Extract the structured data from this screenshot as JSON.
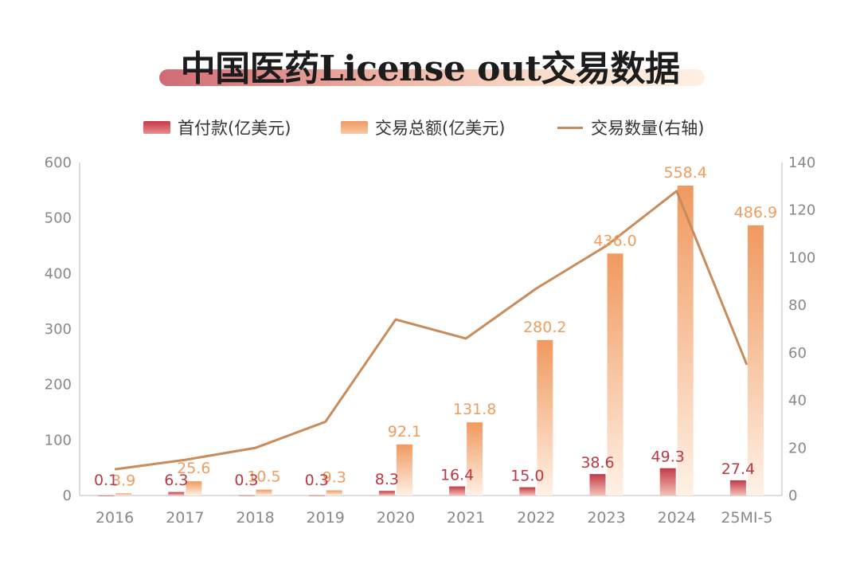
{
  "title": "中国医药License out交易数据",
  "legend": [
    {
      "label": "首付款(亿美元)",
      "kind": "bar",
      "color": "#c23a48"
    },
    {
      "label": "交易总额(亿美元)",
      "kind": "bar",
      "color": "#f2a16f"
    },
    {
      "label": "交易数量(右轴)",
      "kind": "line",
      "color": "#c88b5c"
    }
  ],
  "colors": {
    "upfront_top": "#c23a48",
    "upfront_bottom": "#f4c2b6",
    "total_top": "#f0995f",
    "total_bottom": "#fff1e6",
    "line": "#c88b5c",
    "upfront_label": "#b93a46",
    "total_label": "#ee9d5e",
    "axis": "#bbbbbb",
    "tick": "#888888"
  },
  "chart_data": {
    "type": "bar",
    "categories": [
      "2016",
      "2017",
      "2018",
      "2019",
      "2020",
      "2021",
      "2022",
      "2023",
      "2024",
      "25MI-5"
    ],
    "series": [
      {
        "name": "首付款(亿美元)",
        "type": "bar",
        "axis": "left",
        "values": [
          0.1,
          6.3,
          0.3,
          0.3,
          8.3,
          16.4,
          15.0,
          38.6,
          49.3,
          27.4
        ],
        "labels": [
          "0.1",
          "6.3",
          "0.3",
          "0.3",
          "8.3",
          "16.4",
          "15.0",
          "38.6",
          "49.3",
          "27.4"
        ]
      },
      {
        "name": "交易总额(亿美元)",
        "type": "bar",
        "axis": "left",
        "values": [
          3.9,
          25.6,
          10.5,
          9.3,
          92.1,
          131.8,
          280.2,
          436.0,
          558.4,
          486.9
        ],
        "labels": [
          "3.9",
          "25.6",
          "10.5",
          "9.3",
          "92.1",
          "131.8",
          "280.2",
          "436.0",
          "558.4",
          "486.9"
        ]
      },
      {
        "name": "交易数量(右轴)",
        "type": "line",
        "axis": "right",
        "values": [
          11,
          15,
          20,
          31,
          74,
          66,
          87,
          105,
          128,
          55
        ]
      }
    ],
    "y_left": {
      "ticks": [
        "0",
        "100",
        "200",
        "300",
        "400",
        "500",
        "600"
      ],
      "range": [
        0,
        600
      ]
    },
    "y_right": {
      "ticks": [
        "0",
        "20",
        "40",
        "60",
        "80",
        "100",
        "120",
        "140"
      ],
      "range": [
        0,
        140
      ]
    },
    "grid": false,
    "legend_position": "top-center"
  }
}
